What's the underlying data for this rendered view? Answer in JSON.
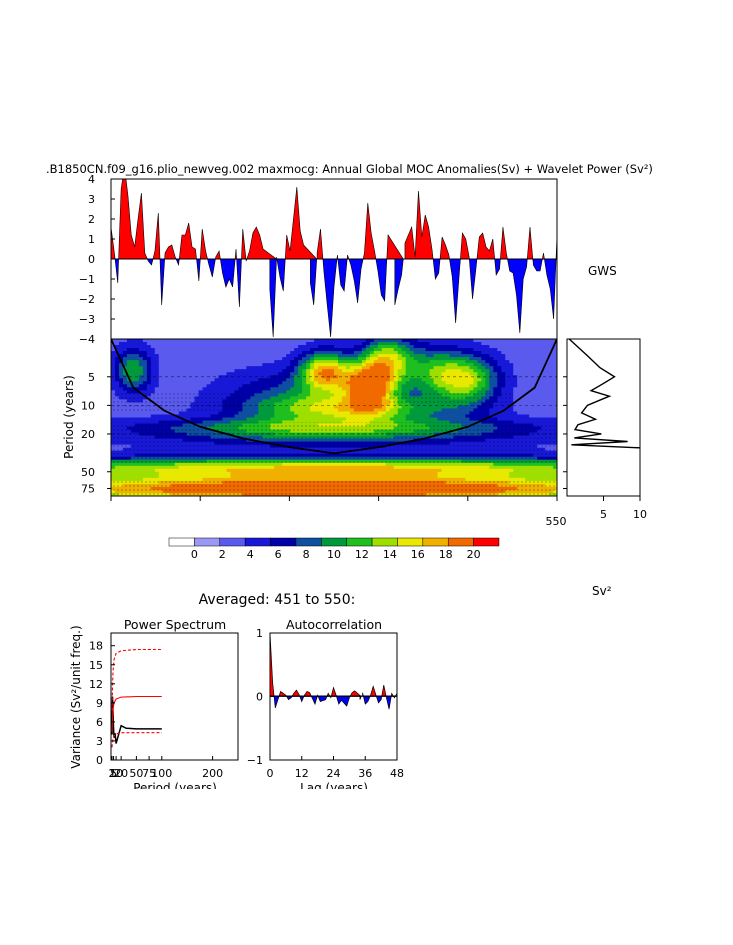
{
  "title": ".B1850CN.f09_g16.plio_newveg.002 maxmocg: Annual Global MOC Anomalies(Sv) + Wavelet Power (Sv²)",
  "colors": {
    "positive": "#ff0000",
    "negative": "#0000ff",
    "coi": "#000000",
    "significance": "#ff0000"
  },
  "chart_data": [
    {
      "type": "area",
      "name": "timeseries",
      "ylim": [
        -4,
        4
      ],
      "yticks": [
        "4",
        "3",
        "2",
        "1",
        "0",
        "−1",
        "−2",
        "−3",
        "−4"
      ],
      "note_label": "GWS",
      "values": [
        1.6,
        0.3,
        -1.2,
        3.5,
        4.6,
        3.2,
        1.2,
        0.6,
        2.0,
        3.3,
        0.3,
        -0.1,
        -0.3,
        0.4,
        2.3,
        -2.3,
        0.3,
        0.6,
        0.7,
        0.1,
        -0.3,
        1.2,
        1.2,
        1.8,
        0.6,
        0.5,
        -1.1,
        1.5,
        0.4,
        -0.3,
        -0.9,
        0.1,
        0.4,
        -0.7,
        -1.4,
        -1.0,
        -1.4,
        0.5,
        -2.4,
        1.5,
        -0.1,
        0.4,
        1.3,
        1.6,
        1.2,
        0.5,
        0.0,
        -1.5,
        -3.9,
        0.1,
        -0.9,
        -1.6,
        1.2,
        0.4,
        0.0,
        3.6,
        1.4,
        0.7,
        0.0,
        -1.2,
        -2.3,
        0.3,
        1.5,
        -0.6,
        -2.3,
        -3.9,
        -1.4,
        0.2,
        -1.3,
        -1.6,
        0.2,
        -0.3,
        -1.1,
        -2.2,
        -0.5,
        0.3,
        2.8,
        1.3,
        0.4,
        -0.6,
        -1.8,
        -2.1,
        1.2,
        0.0,
        -2.3,
        -1.5,
        -0.8,
        0.8,
        0.0,
        1.6,
        0.1,
        3.4,
        1.1,
        2.2,
        1.6,
        0.5,
        -1.0,
        -0.7,
        1.1,
        0.7,
        0.2,
        -0.9,
        -3.2,
        -0.9,
        1.3,
        1.0,
        0.1,
        -2.0,
        -0.5,
        1.1,
        1.3,
        0.6,
        0.4,
        1.0,
        -0.8,
        -0.5,
        1.6,
        0.3,
        -0.6,
        -0.7,
        -1.8,
        -3.7,
        -1.0,
        -0.4,
        1.6,
        -0.3,
        -0.6,
        -0.6,
        0.3,
        -0.8,
        -1.5,
        -3.0,
        1.2
      ]
    },
    {
      "type": "heatmap",
      "name": "wavelet_power",
      "ylabel": "Period (years)",
      "xlim": [
        451,
        550
      ],
      "xtick_label": "550",
      "yticks": [
        5,
        10,
        20,
        50,
        75
      ],
      "period_range": [
        2,
        90
      ],
      "colorbar_unit": "Sv²",
      "colorbar_levels": [
        0,
        2,
        4,
        6,
        8,
        10,
        12,
        14,
        16,
        18,
        20
      ],
      "colorbar_labels": [
        "0",
        "2",
        "4",
        "6",
        "8",
        "10",
        "12",
        "14",
        "16",
        "18",
        "20"
      ],
      "colorbar_colors": [
        "#ffffff",
        "#9a9af5",
        "#5a5aef",
        "#1818d8",
        "#0000a8",
        "#0e4fa0",
        "#009a3c",
        "#1fbf1f",
        "#9fdf00",
        "#e8e800",
        "#f0b000",
        "#f06a00",
        "#ff0000"
      ],
      "coi": {
        "x": [
          0.0,
          0.05,
          0.12,
          0.2,
          0.3,
          0.4,
          0.5,
          0.6,
          0.7,
          0.8,
          0.88,
          0.95,
          1.0
        ],
        "period": [
          2.0,
          6.5,
          11.4,
          16.8,
          22.5,
          27.5,
          32.0,
          27.5,
          22.5,
          16.8,
          11.4,
          6.5,
          2.0
        ]
      },
      "blobs": [
        {
          "x": 0.58,
          "period": 6.2,
          "amp": 19,
          "sx": 0.04,
          "sp": 0.1
        },
        {
          "x": 0.48,
          "period": 4.4,
          "amp": 15,
          "sx": 0.04,
          "sp": 0.09
        },
        {
          "x": 0.62,
          "period": 3.2,
          "amp": 12,
          "sx": 0.04,
          "sp": 0.1
        },
        {
          "x": 0.8,
          "period": 5.4,
          "amp": 12,
          "sx": 0.05,
          "sp": 0.11
        },
        {
          "x": 0.72,
          "period": 4.5,
          "amp": 8,
          "sx": 0.05,
          "sp": 0.12
        },
        {
          "x": 0.05,
          "period": 4.3,
          "amp": 9,
          "sx": 0.03,
          "sp": 0.1
        },
        {
          "x": 0.55,
          "period": 11.0,
          "amp": 10,
          "sx": 0.15,
          "sp": 0.06
        },
        {
          "x": 0.42,
          "period": 8.0,
          "amp": 6,
          "sx": 0.12,
          "sp": 0.12
        },
        {
          "x": 0.5,
          "period": 20.0,
          "amp": 7,
          "sx": 0.3,
          "sp": 0.06
        },
        {
          "x": 0.5,
          "period": 16.5,
          "amp": 5,
          "sx": 0.3,
          "sp": 0.04
        },
        {
          "x": 0.5,
          "period": 45.0,
          "amp": 13,
          "sx": 0.6,
          "sp": 0.05
        },
        {
          "x": 0.5,
          "period": 58.0,
          "amp": 6,
          "sx": 0.6,
          "sp": 0.05
        },
        {
          "x": 0.5,
          "period": 70.0,
          "amp": 10,
          "sx": 0.6,
          "sp": 0.04
        },
        {
          "x": 0.5,
          "period": 85.0,
          "amp": 14,
          "sx": 0.6,
          "sp": 0.04
        }
      ]
    },
    {
      "type": "line",
      "name": "global_wavelet_spectrum",
      "xlim": [
        0,
        10
      ],
      "xticks": [
        "5",
        "10"
      ],
      "power": [
        0.3,
        2.8,
        4.5,
        6.5,
        4.8,
        3.3,
        5.8,
        2.8,
        2.0,
        3.9,
        1.5,
        1.1,
        4.7,
        1.0,
        8.3,
        0.6,
        10.0
      ],
      "period": [
        2.0,
        3.0,
        4.0,
        5.0,
        6.0,
        7.0,
        8.0,
        10.0,
        12.0,
        14.0,
        16.0,
        18.0,
        20.0,
        22.0,
        24.0,
        26.0,
        28.0
      ]
    },
    {
      "type": "line",
      "name": "power_spectrum",
      "title": "Power Spectrum",
      "subtitle": "Averaged: 451 to 550:",
      "xlabel": "Period (years)",
      "ylabel": "Variance (Sv²/unit freq.)",
      "xlim": [
        0,
        250
      ],
      "ylim": [
        0,
        20
      ],
      "xtick_values": [
        2,
        5,
        10,
        20,
        50,
        75,
        100,
        200
      ],
      "xticks": [
        "2",
        "5",
        "10",
        "20",
        "50",
        "75",
        "100",
        "200"
      ],
      "yticks": [
        0,
        3,
        6,
        9,
        12,
        15,
        18
      ],
      "series": [
        {
          "role": "spectrum",
          "color": "#000000",
          "dash": "",
          "x": [
            2,
            3,
            4,
            5,
            6,
            8,
            10,
            15,
            20,
            30,
            50,
            75,
            100
          ],
          "y": [
            4.0,
            10.0,
            7.5,
            5.0,
            3.5,
            4.2,
            2.6,
            4.0,
            5.4,
            5.0,
            4.9,
            4.9,
            4.9
          ]
        },
        {
          "role": "red-noise",
          "color": "#ff0000",
          "dash": "",
          "x": [
            2,
            3,
            4,
            6,
            10,
            20,
            50,
            100
          ],
          "y": [
            4.5,
            6.5,
            8.0,
            9.0,
            9.6,
            9.9,
            10.0,
            10.0
          ]
        },
        {
          "role": "upper-95",
          "color": "#ff0000",
          "dash": "3,2",
          "x": [
            2,
            3,
            4,
            6,
            10,
            20,
            50,
            100
          ],
          "y": [
            7.8,
            11.5,
            14.0,
            15.8,
            16.8,
            17.2,
            17.4,
            17.4
          ]
        },
        {
          "role": "lower-5",
          "color": "#ff0000",
          "dash": "3,2",
          "x": [
            2,
            3,
            4,
            6,
            10,
            20,
            50,
            100
          ],
          "y": [
            2.0,
            2.8,
            3.4,
            3.8,
            4.1,
            4.3,
            4.3,
            4.3
          ]
        }
      ]
    },
    {
      "type": "area",
      "name": "autocorrelation",
      "title": "Autocorrelation",
      "xlabel": "Lag (years)",
      "xlim": [
        0,
        48
      ],
      "ylim": [
        -1,
        1
      ],
      "xticks": [
        0,
        12,
        24,
        36,
        48
      ],
      "yticks": [
        -1,
        0,
        1
      ],
      "lags": [
        0,
        1,
        2,
        3,
        4,
        5,
        6,
        7,
        8,
        9,
        10,
        11,
        12,
        13,
        14,
        15,
        16,
        17,
        18,
        19,
        20,
        21,
        22,
        23,
        24,
        25,
        26,
        27,
        28,
        29,
        30,
        31,
        32,
        33,
        34,
        35,
        36,
        37,
        38,
        39,
        40,
        41,
        42,
        43,
        44,
        45,
        46,
        47,
        48
      ],
      "values": [
        1.0,
        0.22,
        -0.18,
        -0.05,
        0.08,
        0.05,
        0.02,
        -0.05,
        -0.02,
        0.05,
        0.1,
        0.03,
        -0.08,
        0.02,
        0.08,
        0.06,
        -0.03,
        -0.12,
        0.02,
        -0.08,
        0.0,
        -0.05,
        0.05,
        -0.02,
        0.14,
        0.02,
        -0.12,
        -0.06,
        0.0,
        -0.15,
        -0.02,
        0.06,
        0.09,
        0.0,
        -0.05,
        0.06,
        -0.12,
        -0.08,
        0.02,
        0.16,
        0.03,
        -0.1,
        -0.05,
        0.18,
        -0.02,
        -0.2,
        0.05,
        -0.02,
        0.05
      ]
    }
  ]
}
